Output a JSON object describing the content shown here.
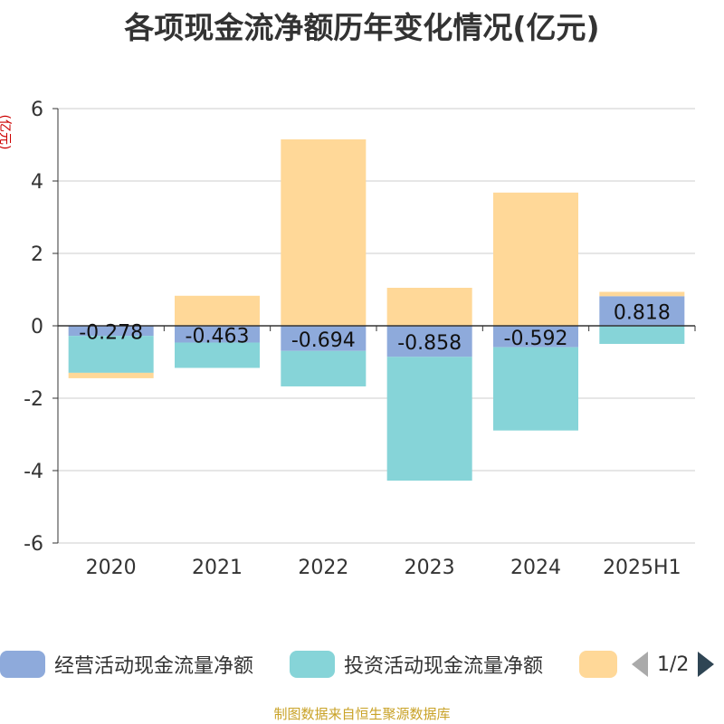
{
  "title": "各项现金流净额历年变化情况(亿元)",
  "y_unit": "(亿元)",
  "source": "制图数据来自恒生聚源数据库",
  "legend": {
    "items": [
      {
        "label": "经营活动现金流量净额",
        "color": "#8eaadb"
      },
      {
        "label": "投资活动现金流量净额",
        "color": "#86d4d8"
      },
      {
        "label": "",
        "color": "#ffd898"
      }
    ],
    "page": "1/2"
  },
  "chart_data": {
    "type": "bar",
    "stacked": true,
    "categories": [
      "2020",
      "2021",
      "2022",
      "2023",
      "2024",
      "2025H1"
    ],
    "series": [
      {
        "name": "经营活动现金流量净额",
        "color": "#8eaadb",
        "values": [
          -0.278,
          -0.463,
          -0.694,
          -0.858,
          -0.592,
          0.818
        ],
        "labels": [
          "-0.278",
          "-0.463",
          "-0.694",
          "-0.858",
          "-0.592",
          "0.818"
        ]
      },
      {
        "name": "投资活动现金流量净额",
        "color": "#86d4d8",
        "values": [
          -1.02,
          -0.7,
          -0.98,
          -3.42,
          -2.3,
          -0.5
        ]
      },
      {
        "name": "",
        "color": "#ffd898",
        "values": [
          -0.15,
          0.83,
          5.15,
          1.05,
          3.68,
          0.12
        ]
      }
    ],
    "ylim": [
      -6,
      6
    ],
    "yticks": [
      -6,
      -4,
      -2,
      0,
      2,
      4,
      6
    ],
    "grid": true,
    "legend_position": "bottom"
  }
}
